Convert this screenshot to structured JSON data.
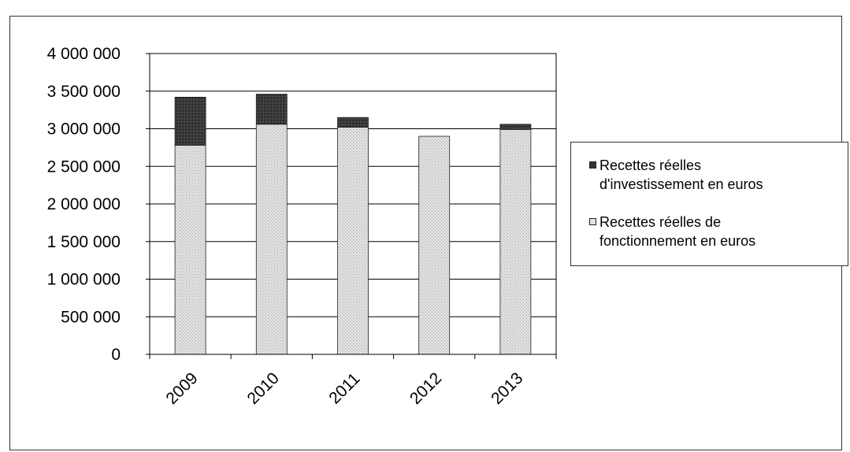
{
  "chart_data": {
    "type": "bar",
    "stacked": true,
    "categories": [
      "2009",
      "2010",
      "2011",
      "2012",
      "2013"
    ],
    "series": [
      {
        "name": "Recettes réelles de fonctionnement en euros",
        "values": [
          2780000,
          3060000,
          3020000,
          2900000,
          2990000
        ],
        "color": "#d6d6d6"
      },
      {
        "name": "Recettes réelles d'investissement en euros",
        "values": [
          640000,
          400000,
          130000,
          0,
          70000
        ],
        "color": "#3a3a3a"
      }
    ],
    "legend_order": [
      1,
      0
    ],
    "legend_lines": [
      [
        "Recettes réelles",
        "d'investissement en euros"
      ],
      [
        "Recettes réelles de",
        "fonctionnement en euros"
      ]
    ],
    "yticks": [
      "0",
      "500 000",
      "1 000 000",
      "1 500 000",
      "2 000 000",
      "2 500 000",
      "3 000 000",
      "3 500 000",
      "4 000 000"
    ],
    "ylim": [
      0,
      4000000
    ],
    "grid": true,
    "legend_position": "right",
    "title": "",
    "xlabel": "",
    "ylabel": ""
  }
}
